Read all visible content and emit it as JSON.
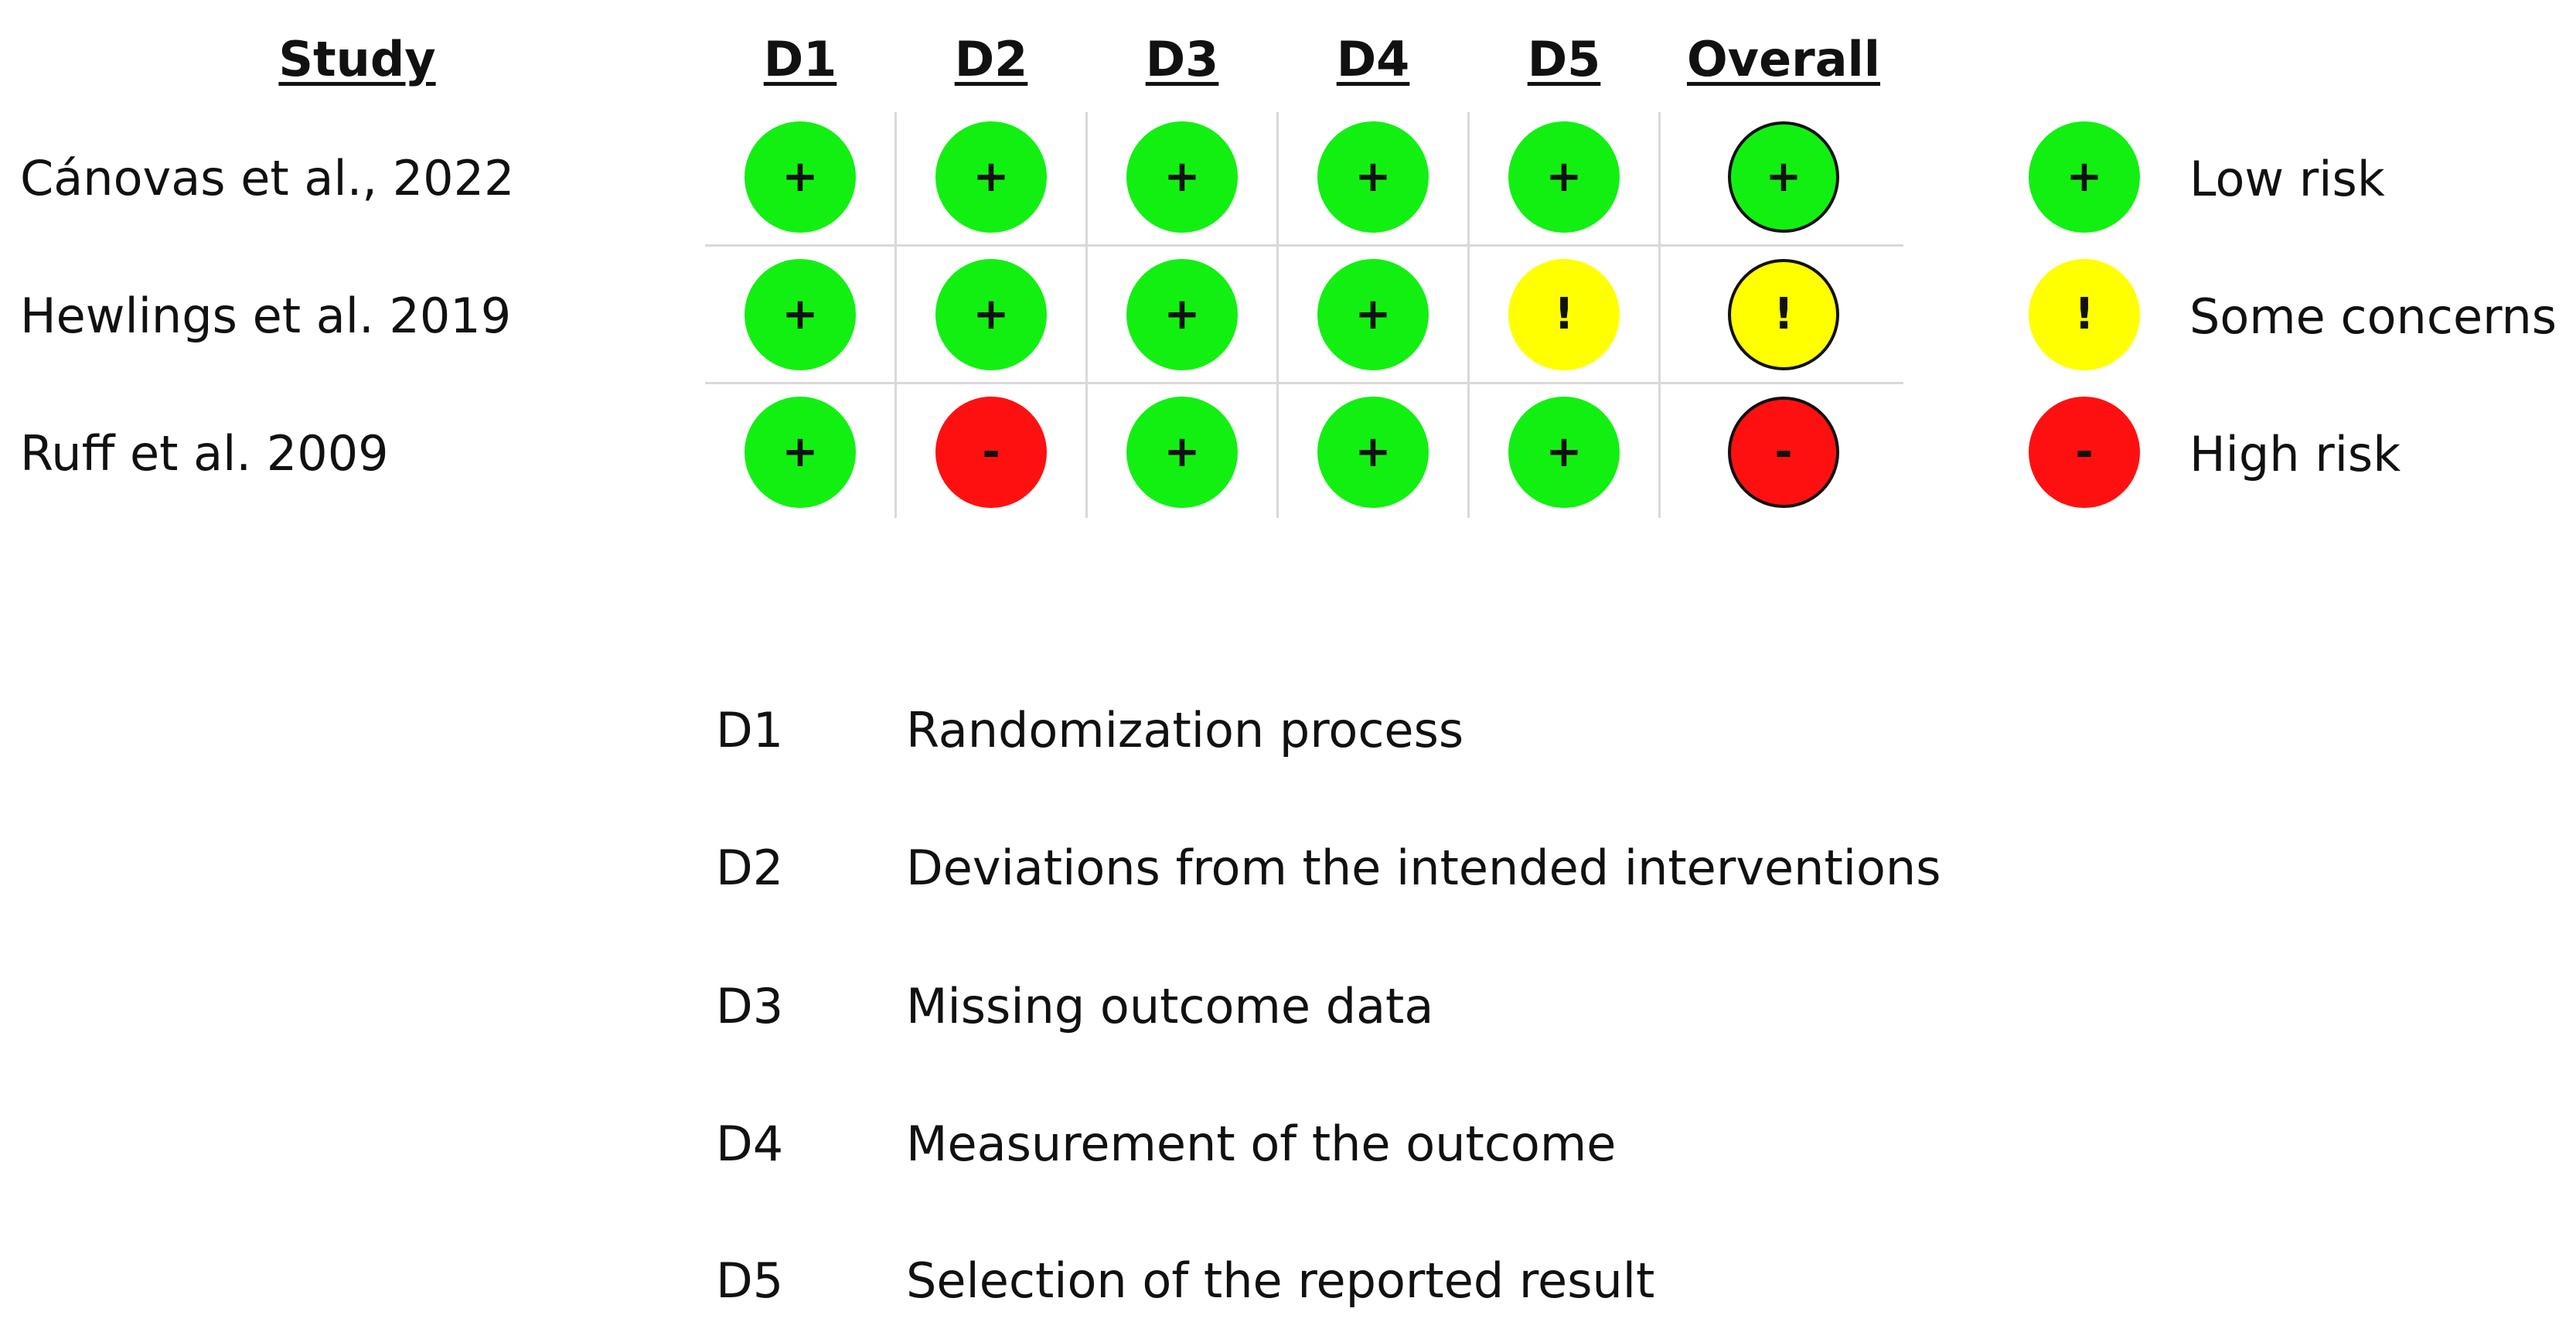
{
  "headers": {
    "study": "Study",
    "domains": [
      "D1",
      "D2",
      "D3",
      "D4",
      "D5"
    ],
    "overall": "Overall"
  },
  "judgement_symbols": {
    "low": "+",
    "some": "!",
    "high": "-"
  },
  "colors": {
    "low": "#12f012",
    "some": "#ffff00",
    "high": "#ff1010"
  },
  "studies": [
    {
      "name": "Cánovas et al., 2022",
      "domains": [
        "low",
        "low",
        "low",
        "low",
        "low"
      ],
      "overall": "low"
    },
    {
      "name": "Hewlings et al. 2019",
      "domains": [
        "low",
        "low",
        "low",
        "low",
        "some"
      ],
      "overall": "some"
    },
    {
      "name": "Ruff et al. 2009",
      "domains": [
        "low",
        "high",
        "low",
        "low",
        "low"
      ],
      "overall": "high"
    }
  ],
  "legend": [
    {
      "level": "low",
      "symbol": "+",
      "label": "Low risk"
    },
    {
      "level": "some",
      "symbol": "!",
      "label": "Some concerns"
    },
    {
      "level": "high",
      "symbol": "-",
      "label": "High risk"
    }
  ],
  "domain_key": [
    {
      "code": "D1",
      "description": "Randomization process"
    },
    {
      "code": "D2",
      "description": "Deviations from the intended interventions"
    },
    {
      "code": "D3",
      "description": "Missing outcome data"
    },
    {
      "code": "D4",
      "description": "Measurement of the outcome"
    },
    {
      "code": "D5",
      "description": "Selection of the reported result"
    }
  ]
}
